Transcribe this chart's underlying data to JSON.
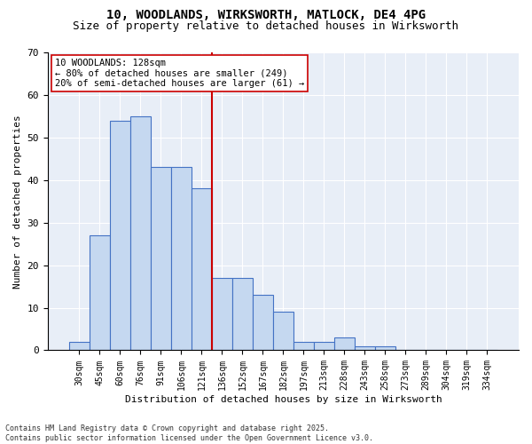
{
  "title_line1": "10, WOODLANDS, WIRKSWORTH, MATLOCK, DE4 4PG",
  "title_line2": "Size of property relative to detached houses in Wirksworth",
  "xlabel": "Distribution of detached houses by size in Wirksworth",
  "ylabel": "Number of detached properties",
  "bar_values": [
    2,
    27,
    54,
    55,
    43,
    43,
    38,
    17,
    17,
    13,
    9,
    2,
    2,
    3,
    1,
    1,
    0,
    0,
    0,
    0,
    0
  ],
  "categories": [
    "30sqm",
    "45sqm",
    "60sqm",
    "76sqm",
    "91sqm",
    "106sqm",
    "121sqm",
    "136sqm",
    "152sqm",
    "167sqm",
    "182sqm",
    "197sqm",
    "213sqm",
    "228sqm",
    "243sqm",
    "258sqm",
    "273sqm",
    "289sqm",
    "304sqm",
    "319sqm",
    "334sqm"
  ],
  "bar_color": "#c5d8f0",
  "bar_edge_color": "#4472c4",
  "background_color": "#e8eef7",
  "vline_x": 6.5,
  "vline_color": "#cc0000",
  "annotation_line1": "10 WOODLANDS: 128sqm",
  "annotation_line2": "← 80% of detached houses are smaller (249)",
  "annotation_line3": "20% of semi-detached houses are larger (61) →",
  "footer_line1": "Contains HM Land Registry data © Crown copyright and database right 2025.",
  "footer_line2": "Contains public sector information licensed under the Open Government Licence v3.0.",
  "ylim": [
    0,
    70
  ],
  "yticks": [
    0,
    10,
    20,
    30,
    40,
    50,
    60,
    70
  ]
}
